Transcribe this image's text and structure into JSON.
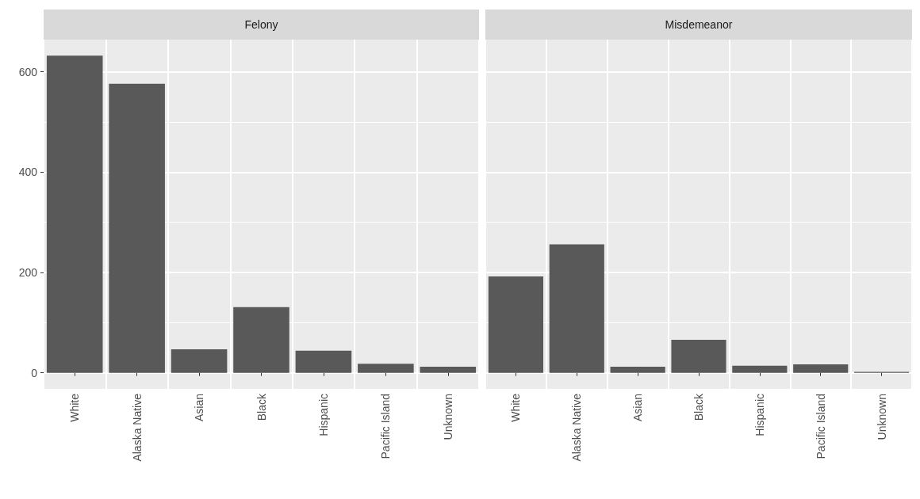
{
  "chart_data": [
    {
      "type": "bar",
      "title": "Felony",
      "categories": [
        "White",
        "Alaska Native",
        "Asian",
        "Black",
        "Hispanic",
        "Pacific Island",
        "Unknown"
      ],
      "values": [
        632,
        576,
        47,
        131,
        44,
        18,
        12
      ],
      "color": "#595959",
      "ylim": [
        -32,
        664
      ],
      "yticks": [
        0,
        200,
        400,
        600
      ],
      "grid": true
    },
    {
      "type": "bar",
      "title": "Misdemeanor",
      "categories": [
        "White",
        "Alaska Native",
        "Asian",
        "Black",
        "Hispanic",
        "Pacific Island",
        "Unknown"
      ],
      "values": [
        192,
        256,
        12,
        66,
        14,
        17,
        2
      ],
      "color": "#595959",
      "ylim": [
        -32,
        664
      ],
      "yticks": [
        0,
        200,
        400,
        600
      ],
      "grid": true,
      "tick_labels": "x"
    }
  ]
}
